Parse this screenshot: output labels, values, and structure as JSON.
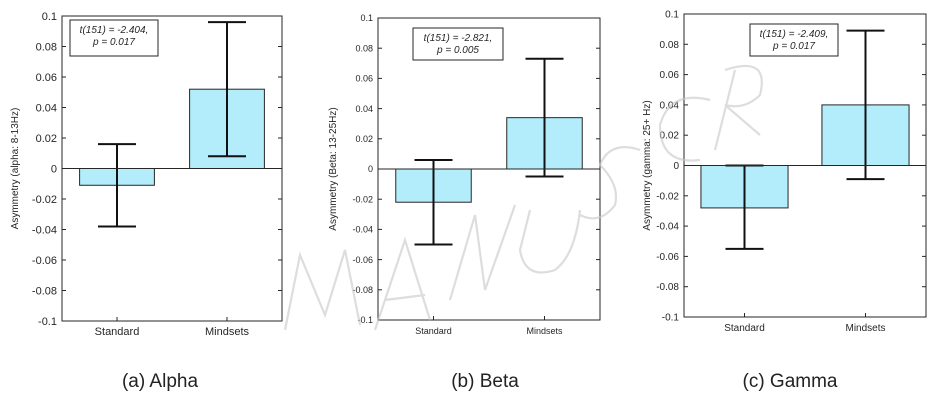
{
  "chart_data": [
    {
      "type": "bar",
      "categories": [
        "Standard",
        "Mindsets"
      ],
      "values": [
        -0.011,
        0.052
      ],
      "error_low": [
        -0.038,
        0.008
      ],
      "error_high": [
        0.016,
        0.096
      ],
      "ylabel": "Asymmetry (alpha: 8-13Hz)",
      "ylim": [
        -0.1,
        0.1
      ],
      "yticks": [
        0.1,
        0.08,
        0.06,
        0.04,
        0.02,
        0,
        -0.02,
        -0.04,
        -0.06,
        -0.08,
        -0.1
      ],
      "ytick_labels": [
        "0.1",
        "0.08",
        "0.06",
        "0.04",
        "0.02",
        "0",
        "-0.02",
        "-0.04",
        "-0.06",
        "-0.08",
        "-0.1"
      ],
      "annotation": [
        "t(151) = -2.404,",
        "p = 0.017"
      ],
      "caption": "(a) Alpha",
      "bar_color": "#b3ecfb"
    },
    {
      "type": "bar",
      "categories": [
        "Standard",
        "Mindsets"
      ],
      "values": [
        -0.022,
        0.034
      ],
      "error_low": [
        -0.05,
        -0.005
      ],
      "error_high": [
        0.006,
        0.073
      ],
      "ylabel": "Asymmetry (Beta: 13-25Hz)",
      "ylim": [
        -0.1,
        0.1
      ],
      "yticks": [
        0.1,
        0.08,
        0.06,
        0.04,
        0.02,
        0,
        -0.02,
        -0.04,
        -0.06,
        -0.08,
        -0.1
      ],
      "ytick_labels": [
        "0.1",
        "0.08",
        "0.06",
        "0.04",
        "0.02",
        "0",
        "-0.02",
        "-0.04",
        "-0.06",
        "-0.08",
        "-0.1"
      ],
      "annotation": [
        "t(151) = -2.821,",
        "p = 0.005"
      ],
      "caption": "(b) Beta",
      "bar_color": "#b3ecfb"
    },
    {
      "type": "bar",
      "categories": [
        "Standard",
        "Mindsets"
      ],
      "values": [
        -0.028,
        0.04
      ],
      "error_low": [
        -0.055,
        -0.009
      ],
      "error_high": [
        0,
        0.089
      ],
      "ylabel": "Asymmetry (gamma: 25+ Hz)",
      "ylim": [
        -0.1,
        0.1
      ],
      "yticks": [
        0.1,
        0.08,
        0.06,
        0.04,
        0.02,
        0,
        -0.02,
        -0.04,
        -0.06,
        -0.08,
        -0.1
      ],
      "ytick_labels": [
        "0.1",
        "0.08",
        "0.06",
        "0.04",
        "0.02",
        "0",
        "-0.02",
        "-0.04",
        "-0.06",
        "-0.08",
        "-0.1"
      ],
      "annotation": [
        "t(151) = -2.409,",
        "p = 0.017"
      ],
      "caption": "(c) Gamma",
      "bar_color": "#b3ecfb"
    }
  ]
}
